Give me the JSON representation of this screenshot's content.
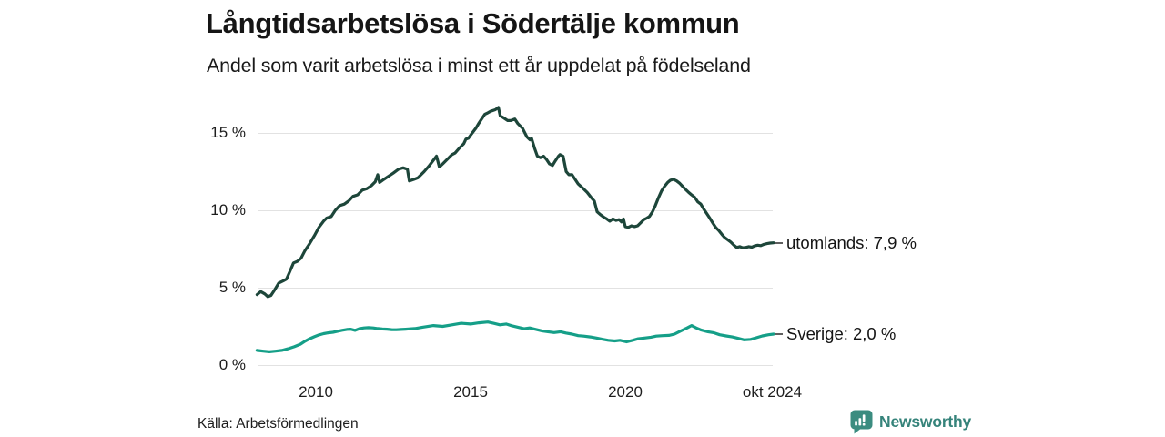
{
  "header": {
    "title": "Långtidsarbetslösa i Södertälje kommun",
    "subtitle": "Andel som varit arbetslösa i minst ett år uppdelat på födelseland"
  },
  "footer": {
    "source": "Källa: Arbetsförmedlingen",
    "brand": "Newsworthy"
  },
  "colors": {
    "utomlands_line": "#1d463a",
    "sverige_line": "#159f88",
    "gridline": "#e2e2e2",
    "text": "#1d1d1d",
    "brand_teal": "#3b8c80"
  },
  "chart_data": {
    "type": "line",
    "title": "Långtidsarbetslösa i Södertälje kommun",
    "subtitle": "Andel som varit arbetslösa i minst ett år uppdelat på födelseland",
    "xlabel": "",
    "ylabel": "",
    "xlim": [
      2008.1,
      2024.79
    ],
    "ylim": [
      0,
      17
    ],
    "grid": "horizontal",
    "legend": "end-labels",
    "yticks": [
      {
        "value": 0,
        "label": "0 %"
      },
      {
        "value": 5,
        "label": "5 %"
      },
      {
        "value": 10,
        "label": "10 %"
      },
      {
        "value": 15,
        "label": "15 %"
      }
    ],
    "xticks": [
      {
        "year": 2010,
        "label": "2010"
      },
      {
        "year": 2015,
        "label": "2015"
      },
      {
        "year": 2020,
        "label": "2020"
      },
      {
        "year": 2024.75,
        "label": "okt 2024"
      }
    ],
    "series": [
      {
        "id": "utomlands",
        "name": "utomlands",
        "end_label": "utomlands: 7,9 %",
        "end_value": "7,9 %",
        "color": "#1d463a",
        "points": [
          [
            2008.1,
            4.55
          ],
          [
            2008.22,
            4.75
          ],
          [
            2008.35,
            4.6
          ],
          [
            2008.45,
            4.42
          ],
          [
            2008.55,
            4.5
          ],
          [
            2008.65,
            4.8
          ],
          [
            2008.8,
            5.3
          ],
          [
            2008.95,
            5.45
          ],
          [
            2009.05,
            5.55
          ],
          [
            2009.15,
            6.0
          ],
          [
            2009.28,
            6.6
          ],
          [
            2009.4,
            6.7
          ],
          [
            2009.52,
            6.9
          ],
          [
            2009.65,
            7.4
          ],
          [
            2009.8,
            7.85
          ],
          [
            2009.95,
            8.35
          ],
          [
            2010.1,
            8.9
          ],
          [
            2010.25,
            9.3
          ],
          [
            2010.35,
            9.5
          ],
          [
            2010.5,
            9.6
          ],
          [
            2010.63,
            10.0
          ],
          [
            2010.77,
            10.3
          ],
          [
            2010.92,
            10.4
          ],
          [
            2011.06,
            10.6
          ],
          [
            2011.2,
            10.9
          ],
          [
            2011.35,
            11.0
          ],
          [
            2011.5,
            11.3
          ],
          [
            2011.65,
            11.4
          ],
          [
            2011.8,
            11.6
          ],
          [
            2011.92,
            11.85
          ],
          [
            2012.0,
            12.3
          ],
          [
            2012.06,
            11.8
          ],
          [
            2012.2,
            12.0
          ],
          [
            2012.35,
            12.2
          ],
          [
            2012.5,
            12.4
          ],
          [
            2012.67,
            12.65
          ],
          [
            2012.82,
            12.75
          ],
          [
            2012.96,
            12.65
          ],
          [
            2013.02,
            11.9
          ],
          [
            2013.17,
            12.0
          ],
          [
            2013.3,
            12.1
          ],
          [
            2013.5,
            12.5
          ],
          [
            2013.65,
            12.85
          ],
          [
            2013.9,
            13.5
          ],
          [
            2013.99,
            12.8
          ],
          [
            2014.1,
            13.0
          ],
          [
            2014.25,
            13.3
          ],
          [
            2014.4,
            13.6
          ],
          [
            2014.5,
            13.7
          ],
          [
            2014.63,
            14.0
          ],
          [
            2014.78,
            14.3
          ],
          [
            2014.85,
            14.6
          ],
          [
            2014.93,
            14.65
          ],
          [
            2015.0,
            14.85
          ],
          [
            2015.17,
            15.3
          ],
          [
            2015.26,
            15.6
          ],
          [
            2015.36,
            15.9
          ],
          [
            2015.46,
            16.2
          ],
          [
            2015.56,
            16.3
          ],
          [
            2015.65,
            16.4
          ],
          [
            2015.8,
            16.5
          ],
          [
            2015.9,
            16.65
          ],
          [
            2015.96,
            16.1
          ],
          [
            2016.05,
            16.0
          ],
          [
            2016.2,
            15.8
          ],
          [
            2016.3,
            15.8
          ],
          [
            2016.43,
            15.9
          ],
          [
            2016.53,
            15.6
          ],
          [
            2016.68,
            15.3
          ],
          [
            2016.82,
            14.75
          ],
          [
            2016.92,
            14.55
          ],
          [
            2016.97,
            14.65
          ],
          [
            2017.07,
            14.0
          ],
          [
            2017.16,
            13.5
          ],
          [
            2017.26,
            13.4
          ],
          [
            2017.36,
            13.5
          ],
          [
            2017.45,
            13.3
          ],
          [
            2017.55,
            13.0
          ],
          [
            2017.65,
            12.9
          ],
          [
            2017.74,
            13.2
          ],
          [
            2017.84,
            13.5
          ],
          [
            2017.89,
            13.6
          ],
          [
            2017.99,
            13.5
          ],
          [
            2018.09,
            12.5
          ],
          [
            2018.18,
            12.3
          ],
          [
            2018.28,
            12.3
          ],
          [
            2018.38,
            12.0
          ],
          [
            2018.48,
            11.7
          ],
          [
            2018.62,
            11.45
          ],
          [
            2018.77,
            11.15
          ],
          [
            2018.91,
            10.8
          ],
          [
            2019.0,
            10.6
          ],
          [
            2019.09,
            9.9
          ],
          [
            2019.21,
            9.7
          ],
          [
            2019.31,
            9.55
          ],
          [
            2019.4,
            9.45
          ],
          [
            2019.5,
            9.3
          ],
          [
            2019.6,
            9.45
          ],
          [
            2019.7,
            9.35
          ],
          [
            2019.8,
            9.4
          ],
          [
            2019.88,
            9.25
          ],
          [
            2019.94,
            9.45
          ],
          [
            2020.0,
            8.95
          ],
          [
            2020.1,
            8.9
          ],
          [
            2020.2,
            9.0
          ],
          [
            2020.3,
            8.95
          ],
          [
            2020.4,
            9.0
          ],
          [
            2020.5,
            9.2
          ],
          [
            2020.6,
            9.4
          ],
          [
            2020.7,
            9.5
          ],
          [
            2020.78,
            9.6
          ],
          [
            2020.88,
            9.9
          ],
          [
            2020.97,
            10.3
          ],
          [
            2021.07,
            10.8
          ],
          [
            2021.17,
            11.25
          ],
          [
            2021.27,
            11.55
          ],
          [
            2021.37,
            11.8
          ],
          [
            2021.46,
            11.95
          ],
          [
            2021.56,
            12.0
          ],
          [
            2021.66,
            11.9
          ],
          [
            2021.76,
            11.75
          ],
          [
            2021.85,
            11.55
          ],
          [
            2021.95,
            11.35
          ],
          [
            2022.05,
            11.15
          ],
          [
            2022.14,
            11.0
          ],
          [
            2022.24,
            10.85
          ],
          [
            2022.34,
            10.55
          ],
          [
            2022.44,
            10.4
          ],
          [
            2022.53,
            10.1
          ],
          [
            2022.63,
            9.8
          ],
          [
            2022.73,
            9.5
          ],
          [
            2022.82,
            9.2
          ],
          [
            2022.92,
            8.9
          ],
          [
            2023.02,
            8.7
          ],
          [
            2023.12,
            8.45
          ],
          [
            2023.21,
            8.25
          ],
          [
            2023.31,
            8.1
          ],
          [
            2023.41,
            7.95
          ],
          [
            2023.51,
            7.75
          ],
          [
            2023.6,
            7.6
          ],
          [
            2023.7,
            7.65
          ],
          [
            2023.79,
            7.58
          ],
          [
            2023.89,
            7.6
          ],
          [
            2023.99,
            7.65
          ],
          [
            2024.09,
            7.62
          ],
          [
            2024.18,
            7.7
          ],
          [
            2024.28,
            7.75
          ],
          [
            2024.38,
            7.72
          ],
          [
            2024.48,
            7.8
          ],
          [
            2024.58,
            7.85
          ],
          [
            2024.68,
            7.88
          ],
          [
            2024.79,
            7.9
          ]
        ]
      },
      {
        "id": "sverige",
        "name": "Sverige",
        "end_label": "Sverige: 2,0 %",
        "end_value": "2,0 %",
        "color": "#159f88",
        "points": [
          [
            2008.1,
            0.95
          ],
          [
            2008.3,
            0.9
          ],
          [
            2008.5,
            0.86
          ],
          [
            2008.7,
            0.9
          ],
          [
            2008.9,
            0.95
          ],
          [
            2009.1,
            1.05
          ],
          [
            2009.3,
            1.18
          ],
          [
            2009.5,
            1.35
          ],
          [
            2009.65,
            1.54
          ],
          [
            2009.8,
            1.7
          ],
          [
            2009.95,
            1.83
          ],
          [
            2010.1,
            1.95
          ],
          [
            2010.25,
            2.03
          ],
          [
            2010.4,
            2.08
          ],
          [
            2010.55,
            2.12
          ],
          [
            2010.7,
            2.18
          ],
          [
            2010.85,
            2.25
          ],
          [
            2011.0,
            2.3
          ],
          [
            2011.12,
            2.32
          ],
          [
            2011.27,
            2.24
          ],
          [
            2011.42,
            2.36
          ],
          [
            2011.56,
            2.4
          ],
          [
            2011.7,
            2.42
          ],
          [
            2011.85,
            2.4
          ],
          [
            2012.0,
            2.36
          ],
          [
            2012.15,
            2.33
          ],
          [
            2012.3,
            2.32
          ],
          [
            2012.45,
            2.29
          ],
          [
            2012.6,
            2.28
          ],
          [
            2012.75,
            2.3
          ],
          [
            2012.9,
            2.32
          ],
          [
            2013.05,
            2.34
          ],
          [
            2013.2,
            2.36
          ],
          [
            2013.45,
            2.45
          ],
          [
            2013.8,
            2.55
          ],
          [
            2014.1,
            2.5
          ],
          [
            2014.4,
            2.6
          ],
          [
            2014.7,
            2.7
          ],
          [
            2015.0,
            2.65
          ],
          [
            2015.27,
            2.73
          ],
          [
            2015.56,
            2.78
          ],
          [
            2015.74,
            2.7
          ],
          [
            2015.95,
            2.6
          ],
          [
            2016.15,
            2.65
          ],
          [
            2016.33,
            2.54
          ],
          [
            2016.53,
            2.45
          ],
          [
            2016.73,
            2.35
          ],
          [
            2016.91,
            2.4
          ],
          [
            2017.12,
            2.3
          ],
          [
            2017.32,
            2.2
          ],
          [
            2017.5,
            2.15
          ],
          [
            2017.7,
            2.1
          ],
          [
            2017.91,
            2.15
          ],
          [
            2018.08,
            2.07
          ],
          [
            2018.28,
            2.0
          ],
          [
            2018.48,
            1.9
          ],
          [
            2018.66,
            1.87
          ],
          [
            2018.87,
            1.82
          ],
          [
            2019.07,
            1.75
          ],
          [
            2019.25,
            1.67
          ],
          [
            2019.45,
            1.6
          ],
          [
            2019.66,
            1.56
          ],
          [
            2019.83,
            1.6
          ],
          [
            2020.04,
            1.5
          ],
          [
            2020.24,
            1.6
          ],
          [
            2020.42,
            1.7
          ],
          [
            2020.62,
            1.75
          ],
          [
            2020.83,
            1.8
          ],
          [
            2021.0,
            1.87
          ],
          [
            2021.21,
            1.9
          ],
          [
            2021.41,
            1.92
          ],
          [
            2021.59,
            2.0
          ],
          [
            2021.79,
            2.2
          ],
          [
            2022.0,
            2.4
          ],
          [
            2022.14,
            2.55
          ],
          [
            2022.29,
            2.4
          ],
          [
            2022.46,
            2.26
          ],
          [
            2022.67,
            2.15
          ],
          [
            2022.87,
            2.08
          ],
          [
            2023.05,
            1.96
          ],
          [
            2023.26,
            1.88
          ],
          [
            2023.46,
            1.82
          ],
          [
            2023.64,
            1.73
          ],
          [
            2023.84,
            1.63
          ],
          [
            2024.05,
            1.66
          ],
          [
            2024.22,
            1.76
          ],
          [
            2024.43,
            1.88
          ],
          [
            2024.63,
            1.96
          ],
          [
            2024.79,
            2.0
          ]
        ]
      }
    ]
  }
}
